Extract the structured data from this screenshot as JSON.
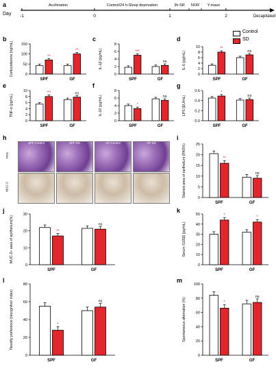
{
  "panel_letters": [
    "a",
    "b",
    "c",
    "d",
    "e",
    "f",
    "g",
    "h",
    "i",
    "j",
    "k",
    "l",
    "m"
  ],
  "timeline": {
    "day_label": "Day",
    "ticks": [
      "-1",
      "0",
      "1",
      "2"
    ],
    "phases": [
      "Acclimation",
      "Control/24 h-Sleep deprivation",
      "3h-SR",
      "NOR",
      "Y-maze"
    ],
    "end_label": "Decapitated"
  },
  "legend": {
    "control": "Control",
    "sd": "SD",
    "control_color": "#ffffff",
    "sd_color": "#e3262b"
  },
  "micrographs": {
    "columns": [
      "SPF-Control",
      "SPF-SD",
      "GF-Control",
      "GF-SD"
    ],
    "rows": [
      "PAS",
      "MUC-2"
    ]
  },
  "chart_data": [
    {
      "panel": "b",
      "type": "bar",
      "ylabel": "Corticosterone (ng/mL)",
      "categories": [
        "SPF",
        "GF"
      ],
      "ylim": [
        0,
        150
      ],
      "yticks": [
        0,
        50,
        100,
        150
      ],
      "series": [
        {
          "name": "Control",
          "values": [
            42,
            42
          ]
        },
        {
          "name": "SD",
          "values": [
            70,
            100
          ]
        }
      ],
      "sig": [
        "**",
        "**"
      ]
    },
    {
      "panel": "c",
      "type": "bar",
      "ylabel": "IL-1β (pg/mL)",
      "categories": [
        "SPF",
        "GF"
      ],
      "ylim": [
        0,
        8
      ],
      "yticks": [
        0,
        2,
        4,
        6,
        8
      ],
      "series": [
        {
          "name": "Control",
          "values": [
            1.8,
            2.0
          ]
        },
        {
          "name": "SD",
          "values": [
            5.0,
            2.3
          ]
        }
      ],
      "sig": [
        "***",
        "ns"
      ]
    },
    {
      "panel": "d",
      "type": "bar",
      "ylabel": "IL-6 (pg/mL)",
      "categories": [
        "SPF",
        "GF"
      ],
      "ylim": [
        0,
        10
      ],
      "yticks": [
        0,
        2,
        4,
        6,
        8,
        10
      ],
      "series": [
        {
          "name": "Control",
          "values": [
            3.2,
            6.0
          ]
        },
        {
          "name": "SD",
          "values": [
            8.0,
            7.0
          ]
        }
      ],
      "sig": [
        "**",
        "ns"
      ]
    },
    {
      "panel": "e",
      "type": "bar",
      "ylabel": "TNF-α (pg/mL)",
      "categories": [
        "SPF",
        "GF"
      ],
      "ylim": [
        0,
        10
      ],
      "yticks": [
        0,
        2,
        4,
        6,
        8,
        10
      ],
      "series": [
        {
          "name": "Control",
          "values": [
            5.5,
            7.0
          ]
        },
        {
          "name": "SD",
          "values": [
            8.0,
            7.8
          ]
        }
      ],
      "sig": [
        "***",
        "ns"
      ]
    },
    {
      "panel": "f",
      "type": "bar",
      "ylabel": "IL-10 (pg/mL)",
      "categories": [
        "SPF",
        "GF"
      ],
      "ylim": [
        0,
        8
      ],
      "yticks": [
        0,
        2,
        4,
        6,
        8
      ],
      "series": [
        {
          "name": "Control",
          "values": [
            4.0,
            5.8
          ]
        },
        {
          "name": "SD",
          "values": [
            3.2,
            5.4
          ]
        }
      ],
      "sig": [
        "*",
        "ns"
      ]
    },
    {
      "panel": "g",
      "type": "bar",
      "ylabel": "LPS (EU/mL)",
      "categories": [
        "SPF",
        "GF"
      ],
      "ylim": [
        0.0,
        0.6
      ],
      "yticks": [
        "0.0",
        "0.2",
        "0.4",
        "0.6"
      ],
      "series": [
        {
          "name": "Control",
          "values": [
            0.45,
            0.41
          ]
        },
        {
          "name": "SD",
          "values": [
            0.49,
            0.42
          ]
        }
      ],
      "sig": [
        "*",
        "ns"
      ]
    },
    {
      "panel": "i",
      "type": "bar",
      "ylabel": "Stained area of epithelium (PAS%)",
      "categories": [
        "SPF",
        "GF"
      ],
      "ylim": [
        0,
        25
      ],
      "yticks": [
        0,
        5,
        10,
        15,
        20,
        25
      ],
      "series": [
        {
          "name": "Control",
          "values": [
            20.5,
            9.5
          ]
        },
        {
          "name": "SD",
          "values": [
            16.0,
            9.0
          ]
        }
      ],
      "sig": [
        "**",
        "ns"
      ]
    },
    {
      "panel": "j",
      "type": "bar",
      "ylabel": "MUC-2+ area of epithelium(%)",
      "categories": [
        "SPF",
        "GF"
      ],
      "ylim": [
        0,
        30
      ],
      "yticks": [
        0,
        10,
        20,
        30
      ],
      "series": [
        {
          "name": "Control",
          "values": [
            22,
            21.5
          ]
        },
        {
          "name": "SD",
          "values": [
            17,
            21
          ]
        }
      ],
      "sig": [
        "**",
        "ns"
      ]
    },
    {
      "panel": "k",
      "type": "bar",
      "ylabel": "Serum S100β (pg/mL)",
      "categories": [
        "SPF",
        "GF"
      ],
      "ylim": [
        0,
        50
      ],
      "yticks": [
        0,
        10,
        20,
        30,
        40,
        50
      ],
      "series": [
        {
          "name": "Control",
          "values": [
            30,
            32
          ]
        },
        {
          "name": "SD",
          "values": [
            44,
            42
          ]
        }
      ],
      "sig": [
        "*",
        "*"
      ]
    },
    {
      "panel": "l",
      "type": "bar",
      "ylabel": "Novelty preference (recognition index)",
      "categories": [
        "SPF",
        "GF"
      ],
      "ylim": [
        0,
        80
      ],
      "yticks": [
        0,
        20,
        40,
        60,
        80
      ],
      "series": [
        {
          "name": "Control",
          "values": [
            55,
            50
          ]
        },
        {
          "name": "SD",
          "values": [
            28,
            54
          ]
        }
      ],
      "sig": [
        "*",
        "ns"
      ]
    },
    {
      "panel": "m",
      "type": "bar",
      "ylabel": "Spontaneous alternation (%)",
      "categories": [
        "SPF",
        "GF"
      ],
      "ylim": [
        0,
        100
      ],
      "yticks": [
        0,
        20,
        40,
        60,
        80,
        100
      ],
      "series": [
        {
          "name": "Control",
          "values": [
            84,
            72
          ]
        },
        {
          "name": "SD",
          "values": [
            66,
            74
          ]
        }
      ],
      "sig": [
        "*",
        "ns"
      ]
    }
  ]
}
